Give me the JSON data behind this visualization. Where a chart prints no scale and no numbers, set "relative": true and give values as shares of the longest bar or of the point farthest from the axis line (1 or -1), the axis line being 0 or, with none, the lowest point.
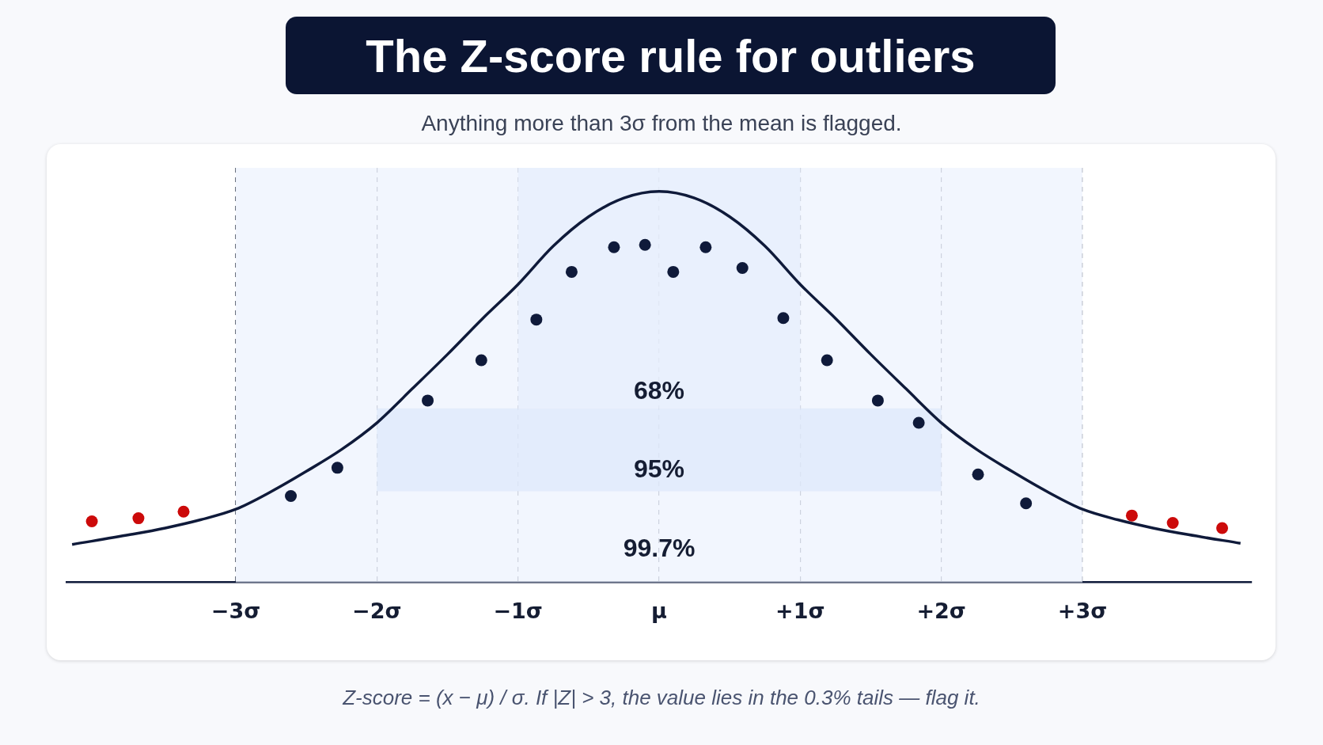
{
  "chart_data": {
    "type": "scatter",
    "title": "The Z-score rule for outliers",
    "subtitle": "Anything more than 3σ from the mean is flagged.",
    "relative": true,
    "xlim": [
      -4.2,
      4.2
    ],
    "xticks": [
      {
        "value": -3,
        "label": "−3σ"
      },
      {
        "value": -2,
        "label": "−2σ"
      },
      {
        "value": -1,
        "label": "−1σ"
      },
      {
        "value": 0,
        "label": "μ"
      },
      {
        "value": 1,
        "label": "+1σ"
      },
      {
        "value": 2,
        "label": "+2σ"
      },
      {
        "value": 3,
        "label": "+3σ"
      }
    ],
    "grid": "x",
    "line_style": "dashed",
    "legend": false,
    "tick_labels": "x",
    "bands": [
      {
        "axis": "x",
        "from": -3,
        "to": 3,
        "label": "99.7%",
        "color": "#eef3fd"
      },
      {
        "axis": "x",
        "from": -2,
        "to": 2,
        "label": "95%",
        "color": "#dde8fb"
      },
      {
        "axis": "x",
        "from": -1,
        "to": 1,
        "label": "68%",
        "color": "#e6eefc"
      }
    ],
    "series": [
      {
        "type": "line",
        "marker": "none",
        "line_style": "solid",
        "color": "#0f1a3a",
        "x": [
          -4.16,
          -3.75,
          -3.5,
          -3.25,
          -3,
          -2.75,
          -2.5,
          -2.25,
          -2,
          -1.75,
          -1.5,
          -1.25,
          -1,
          -0.75,
          -0.5,
          -0.25,
          0,
          0.25,
          0.5,
          0.75,
          1,
          1.25,
          1.5,
          1.75,
          2,
          2.25,
          2.5,
          2.75,
          3,
          3.25,
          3.5,
          3.75,
          4.12
        ],
        "values": [
          0.097,
          0.122,
          0.139,
          0.16,
          0.187,
          0.232,
          0.284,
          0.34,
          0.408,
          0.495,
          0.583,
          0.675,
          0.762,
          0.86,
          0.935,
          0.983,
          1,
          0.983,
          0.935,
          0.86,
          0.762,
          0.675,
          0.583,
          0.495,
          0.408,
          0.34,
          0.284,
          0.232,
          0.187,
          0.16,
          0.139,
          0.122,
          0.1
        ]
      },
      {
        "type": "scatter",
        "marker": "circle",
        "color": "#0f1a3a",
        "x": [
          -2.61,
          -2.28,
          -1.64,
          -1.26,
          -0.87,
          -0.62,
          -0.32,
          -0.1,
          0.1,
          0.33,
          0.59,
          0.88,
          1.19,
          1.55,
          1.84,
          2.26,
          2.6
        ],
        "values": [
          0.221,
          0.293,
          0.465,
          0.568,
          0.672,
          0.794,
          0.857,
          0.863,
          0.794,
          0.857,
          0.804,
          0.676,
          0.568,
          0.465,
          0.408,
          0.276,
          0.202
        ]
      },
      {
        "type": "scatter",
        "marker": "circle",
        "color": "#cc0a0a",
        "x": [
          -4.02,
          -3.69,
          -3.37,
          3.35,
          3.64,
          3.99
        ],
        "values": [
          0.156,
          0.164,
          0.181,
          0.171,
          0.152,
          0.139
        ]
      }
    ],
    "annotations": [
      "Z-score = (x − μ) / σ.  If |Z| > 3,  the value lies in the 0.3% tails — flag it."
    ]
  }
}
